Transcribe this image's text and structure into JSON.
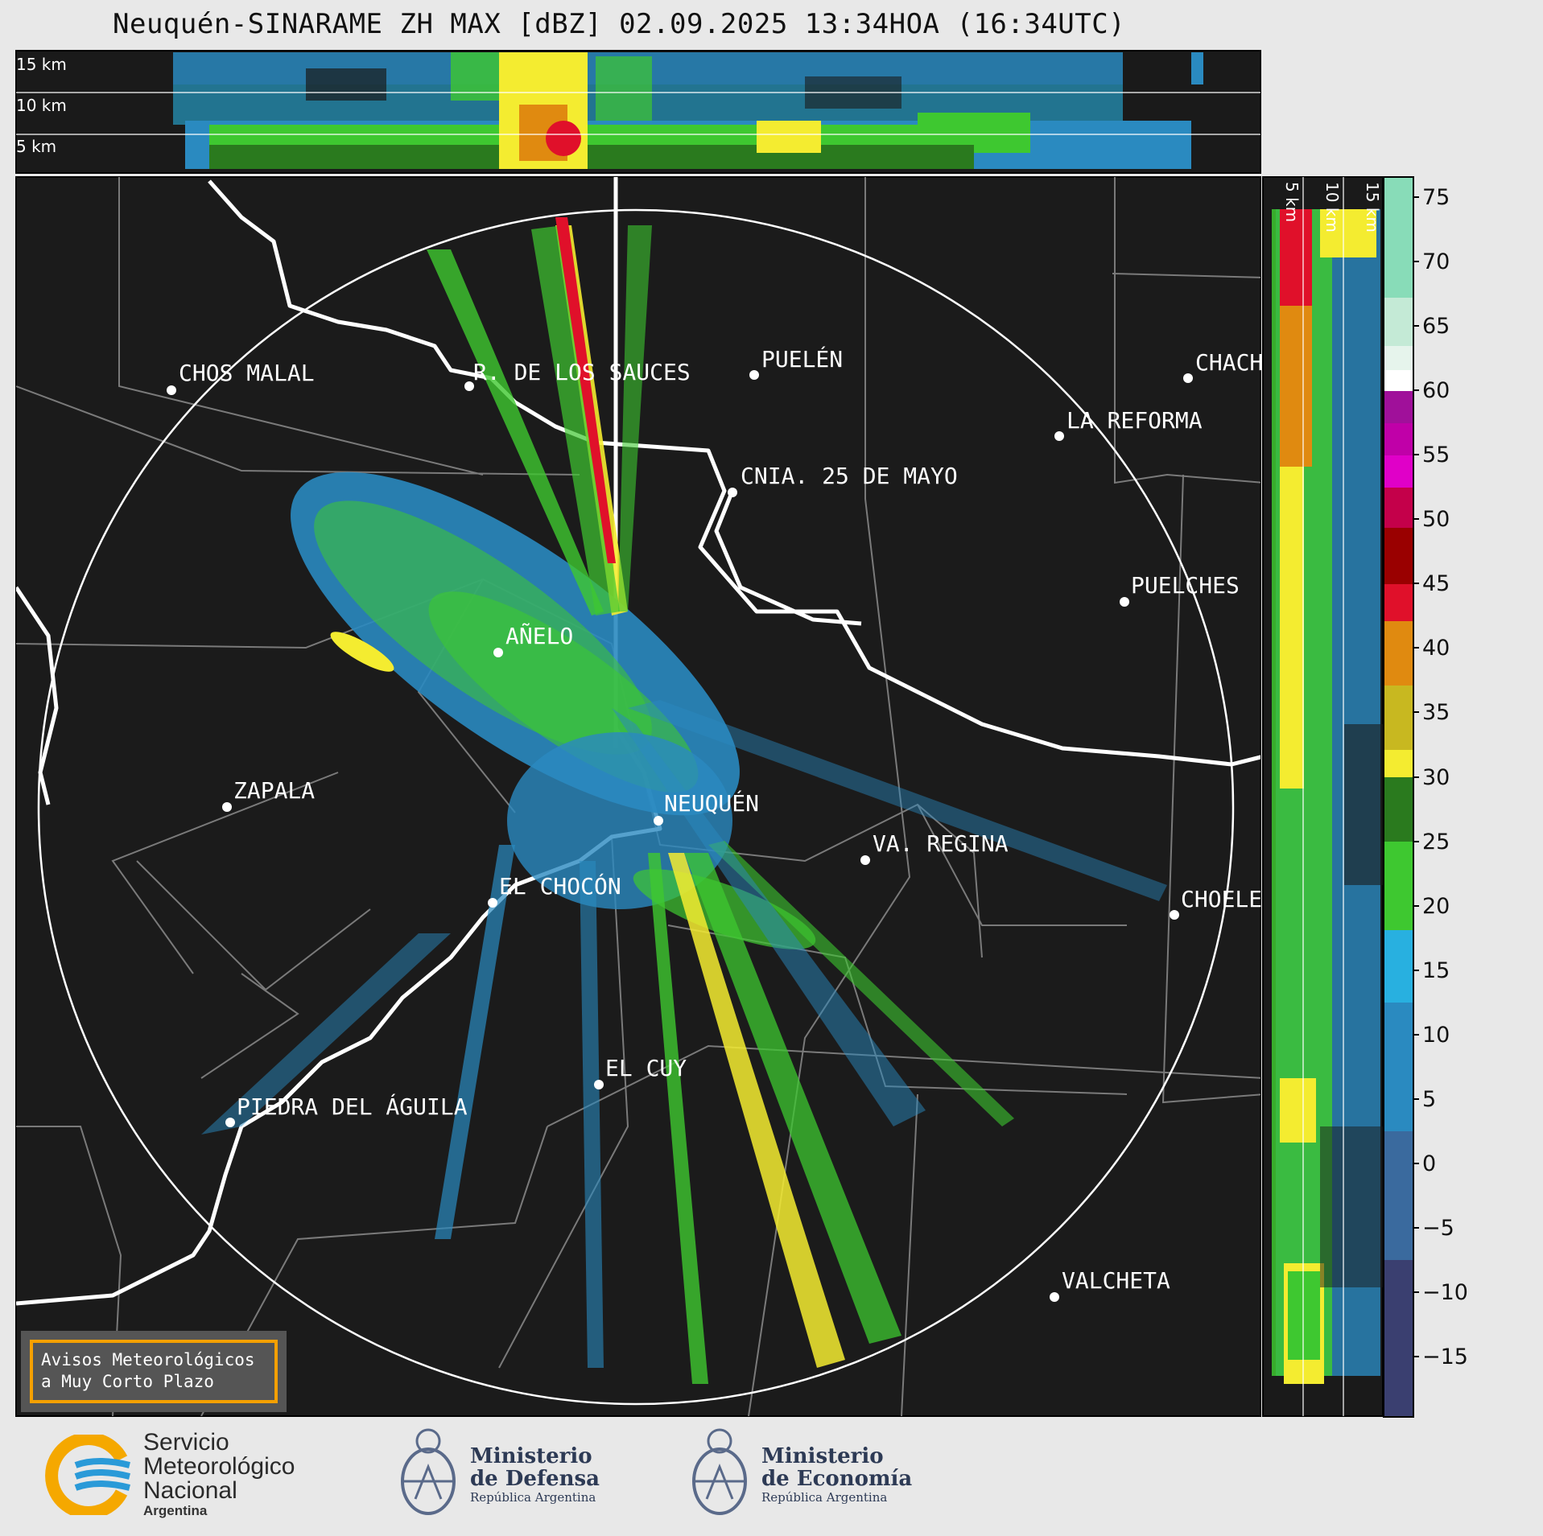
{
  "title": "Neuquén-SINARAME ZH MAX [dBZ] 02.09.2025 13:34HOA (16:34UTC)",
  "top_panel": {
    "heights": [
      "15 km",
      "10 km",
      "5 km"
    ]
  },
  "side_panel": {
    "heights": [
      "5 km",
      "10 km",
      "15 km"
    ]
  },
  "cities": [
    {
      "name": "CHOS MALAL"
    },
    {
      "name": "R. DE LOS SAUCES"
    },
    {
      "name": "PUELÉN"
    },
    {
      "name": "CHACH"
    },
    {
      "name": "LA REFORMA"
    },
    {
      "name": "CNIA. 25 DE MAYO"
    },
    {
      "name": "PUELCHES"
    },
    {
      "name": "AÑELO"
    },
    {
      "name": "ZAPALA"
    },
    {
      "name": "NEUQUÉN"
    },
    {
      "name": "VA. REGINA"
    },
    {
      "name": "EL CHOCÓN"
    },
    {
      "name": "CHOELE"
    },
    {
      "name": "EL CUY"
    },
    {
      "name": "PIEDRA DEL ÁGUILA"
    },
    {
      "name": "VALCHETA"
    }
  ],
  "colorbar": {
    "labels": [
      "75",
      "70",
      "65",
      "60",
      "55",
      "50",
      "45",
      "40",
      "35",
      "30",
      "25",
      "20",
      "15",
      "10",
      "5",
      "0",
      "−5",
      "−10",
      "−15"
    ],
    "colors": {
      "fill_high": "#88dcb8",
      "white": "#ffffff",
      "purple": "#a0109a",
      "magenta": "#e000c8",
      "crimson": "#c4004a",
      "darkred": "#9a0000",
      "red": "#e0102a",
      "orange": "#e08a10",
      "olive": "#c8b820",
      "yellow": "#f4ec30",
      "darkgreen": "#2a7a1e",
      "green": "#3ec830",
      "lightblue": "#28b0e0",
      "blue": "#2a8ac0",
      "steel": "#3a6a9e",
      "navy": "#3a3f70"
    }
  },
  "avisos": {
    "line1": "Avisos Meteorológicos",
    "line2": "a Muy Corto Plazo"
  },
  "logos": {
    "smn": {
      "line1": "Servicio",
      "line2": "Meteorológico",
      "line3": "Nacional",
      "sub": "Argentina"
    },
    "defensa": {
      "line1": "Ministerio",
      "line2": "de Defensa",
      "sub": "República Argentina"
    },
    "economia": {
      "line1": "Ministerio",
      "line2": "de Economía",
      "sub": "República Argentina"
    }
  }
}
